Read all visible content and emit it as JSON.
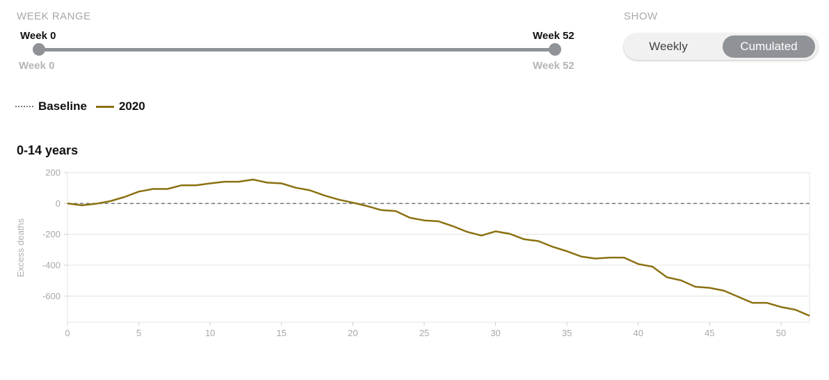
{
  "controls": {
    "week_range_label": "WEEK RANGE",
    "range_start_label": "Week 0",
    "range_end_label": "Week 52",
    "range_min_label": "Week 0",
    "range_max_label": "Week 52",
    "show_label": "SHOW",
    "toggle_options": [
      "Weekly",
      "Cumulated"
    ],
    "toggle_selected": "Cumulated"
  },
  "legend": {
    "baseline_label": "Baseline",
    "series_label": "2020"
  },
  "colors": {
    "series": "#8a7010",
    "baseline": "#777777",
    "slider": "#8f9296",
    "grid": "#e3e3e3"
  },
  "chart_data": {
    "type": "line",
    "title": "0-14 years",
    "ylabel": "Excess deaths",
    "xlabel": "",
    "xlim": [
      0,
      52
    ],
    "ylim": [
      -770,
      200
    ],
    "x_ticks": [
      0,
      5,
      10,
      15,
      20,
      25,
      30,
      35,
      40,
      45,
      50
    ],
    "y_ticks": [
      200,
      0,
      -200,
      -400,
      -600
    ],
    "y_tick_labels": [
      "200",
      "0",
      "-200",
      "-400",
      "-600"
    ],
    "baseline": 0,
    "series": [
      {
        "name": "2020",
        "x": [
          0,
          1,
          2,
          3,
          4,
          5,
          6,
          7,
          8,
          9,
          10,
          11,
          12,
          13,
          14,
          15,
          16,
          17,
          18,
          19,
          20,
          21,
          22,
          23,
          24,
          25,
          26,
          27,
          28,
          29,
          30,
          31,
          32,
          33,
          34,
          35,
          36,
          37,
          38,
          39,
          40,
          41,
          42,
          43,
          44,
          45,
          46,
          47,
          48,
          49,
          50,
          51,
          52
        ],
        "y": [
          0,
          -12,
          -2,
          15,
          42,
          77,
          94,
          94,
          118,
          118,
          130,
          141,
          141,
          155,
          135,
          130,
          102,
          85,
          52,
          25,
          5,
          -17,
          -43,
          -49,
          -93,
          -110,
          -116,
          -147,
          -184,
          -208,
          -181,
          -197,
          -232,
          -244,
          -281,
          -310,
          -344,
          -357,
          -351,
          -351,
          -393,
          -410,
          -478,
          -499,
          -540,
          -547,
          -565,
          -605,
          -644,
          -644,
          -671,
          -689,
          -728
        ]
      }
    ]
  }
}
